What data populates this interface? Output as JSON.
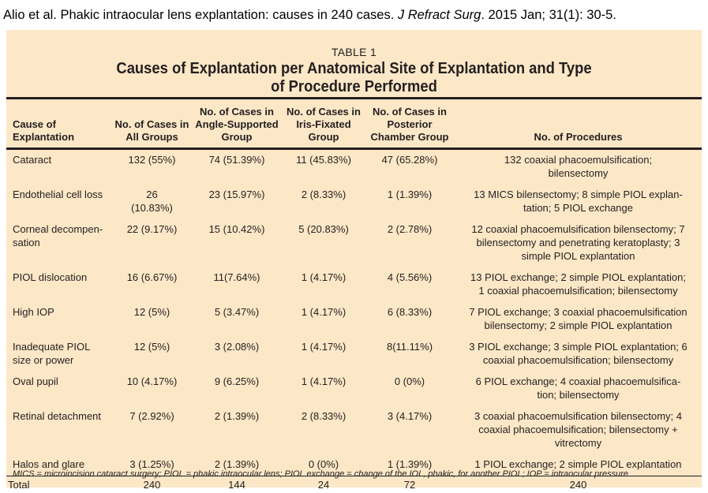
{
  "citation": {
    "prefix": "Alio et al. Phakic intraocular lens explantation: causes in 240 cases. ",
    "journal": "J Refract Surg",
    "suffix": ". 2015 Jan; 31(1): 30-5."
  },
  "table": {
    "label": "TABLE 1",
    "title": "Causes of Explantation per Anatomical Site of Explantation and Type of Procedure Performed",
    "headers": [
      "Cause of Explantation",
      "No. of Cases in All Groups",
      "No. of Cases in Angle-Supported Group",
      "No. of Cases in Iris-Fixated Group",
      "No. of Cases in Posterior Chamber Group",
      "No. of Procedures"
    ],
    "rows": [
      [
        "Cataract",
        "132 (55%)",
        "74 (51.39%)",
        "11 (45.83%)",
        "47 (65.28%)",
        "132 coaxial phacoemulsification;\nbilensectomy"
      ],
      [
        "Endothelial cell loss",
        "26\n(10.83%)",
        "23 (15.97%)",
        "2 (8.33%)",
        "1 (1.39%)",
        "13 MICS bilensectomy; 8 simple PIOL explan-\ntation; 5 PIOL exchange"
      ],
      [
        "Corneal decompen-\nsation",
        "22 (9.17%)",
        "15 (10.42%)",
        "5 (20.83%)",
        "2 (2.78%)",
        "12 coaxial phacoemulsification bilensectomy; 7\nbilensectomy and penetrating keratoplasty; 3\nsimple PIOL explantation"
      ],
      [
        "PIOL dislocation",
        "16 (6.67%)",
        "11(7.64%)",
        "1 (4.17%)",
        "4 (5.56%)",
        "13 PIOL exchange; 2 simple PIOL explantation;\n1 coaxial phacoemulsification; bilensectomy"
      ],
      [
        "High IOP",
        "12 (5%)",
        "5 (3.47%)",
        "1 (4.17%)",
        "6 (8.33%)",
        "7 PIOL exchange; 3 coaxial phacoemulsification\nbilensectomy; 2 simple PIOL explantation"
      ],
      [
        "Inadequate PIOL\n  size or power",
        "12 (5%)",
        "3 (2.08%)",
        "1 (4.17%)",
        "8(11.11%)",
        "3 PIOL exchange; 3 simple PIOL explantation; 6\ncoaxial phacoemulsification; bilensectomy"
      ],
      [
        "Oval pupil",
        "10 (4.17%)",
        "9 (6.25%)",
        "1 (4.17%)",
        "0 (0%)",
        "6 PIOL exchange; 4 coaxial phacoemulsifica-\ntion; bilensectomy"
      ],
      [
        "Retinal detachment",
        "7 (2.92%)",
        "2 (1.39%)",
        "2 (8.33%)",
        "3 (4.17%)",
        "3 coaxial phacoemulsification bilensectomy; 4\ncoaxial phacoemulsification; bilensectomy +\nvitrectomy"
      ],
      [
        "Halos and glare",
        "3 (1.25%)",
        "2 (1.39%)",
        "0 (0%)",
        "1 (1.39%)",
        "1 PIOL exchange; 2 simple PIOL explantation"
      ]
    ],
    "total": [
      "Total",
      "240",
      "144",
      "24",
      "72",
      "240"
    ],
    "footnote": "MICS = microincision cataract surgery; PIOL = phakic intraocular lens; PIOL exchange = change of the IOL, phakic, for another PIOL; IOP = intraocular pressure"
  },
  "colors": {
    "panel_background": "#fce7c6",
    "text": "#231f20"
  }
}
